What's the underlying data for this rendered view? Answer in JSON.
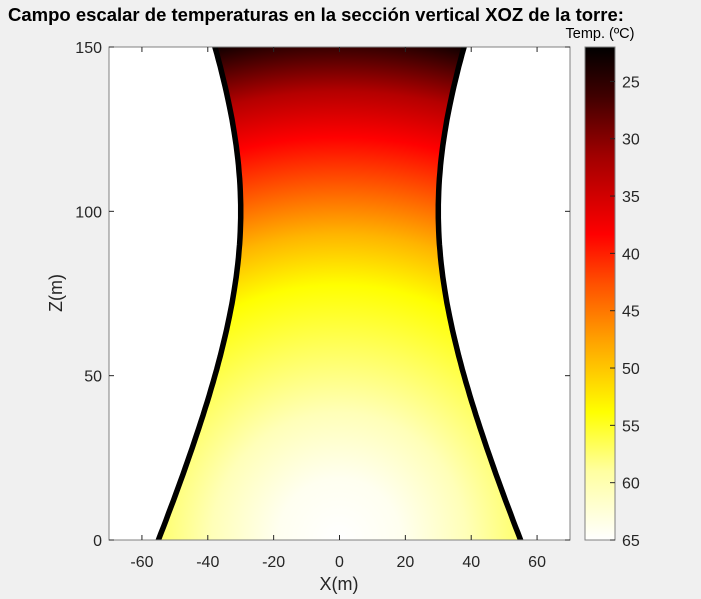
{
  "title": "Campo escalar de temperaturas en la sección vertical XOZ de la torre:",
  "chart_data": {
    "type": "heatmap",
    "title": "Campo escalar de temperaturas en la sección vertical XOZ de la torre:",
    "xlabel": "X(m)",
    "ylabel": "Z(m)",
    "xlim": [
      -70,
      70
    ],
    "ylim": [
      0,
      150
    ],
    "xticks": [
      -60,
      -40,
      -20,
      0,
      20,
      40,
      60
    ],
    "yticks": [
      0,
      50,
      100,
      150
    ],
    "grid": false,
    "colormap": "hot (reversed)",
    "colorbar": {
      "label": "Temp. (ºC)",
      "range": [
        22,
        65
      ],
      "ticks": [
        25,
        30,
        35,
        40,
        45,
        50,
        55,
        60,
        65
      ],
      "position": "right"
    },
    "field": {
      "description": "Radial temperature field centred at (X=0, Z=0), decreasing with distance",
      "center": [
        0,
        0
      ],
      "samples": [
        {
          "r": 0,
          "temp": 65
        },
        {
          "r": 79,
          "temp": 54
        },
        {
          "r": 123,
          "temp": 37.5
        },
        {
          "r": 155,
          "temp": 22
        }
      ]
    },
    "tower_profile": {
      "description": "Hyperboloid outline (black lines) bounding the field",
      "points": [
        {
          "z": 0,
          "x_half_width": 55
        },
        {
          "z": 50,
          "x_half_width": 40
        },
        {
          "z": 100,
          "x_half_width": 30
        },
        {
          "z": 150,
          "x_half_width": 38
        }
      ]
    }
  },
  "axes": {
    "xlabel": "X(m)",
    "ylabel": "Z(m)",
    "xticks": [
      "-60",
      "-40",
      "-20",
      "0",
      "20",
      "40",
      "60"
    ],
    "yticks": [
      "0",
      "50",
      "100",
      "150"
    ]
  },
  "colorbar": {
    "title": "Temp. (ºC)",
    "ticks": [
      "25",
      "30",
      "35",
      "40",
      "45",
      "50",
      "55",
      "60",
      "65"
    ]
  }
}
